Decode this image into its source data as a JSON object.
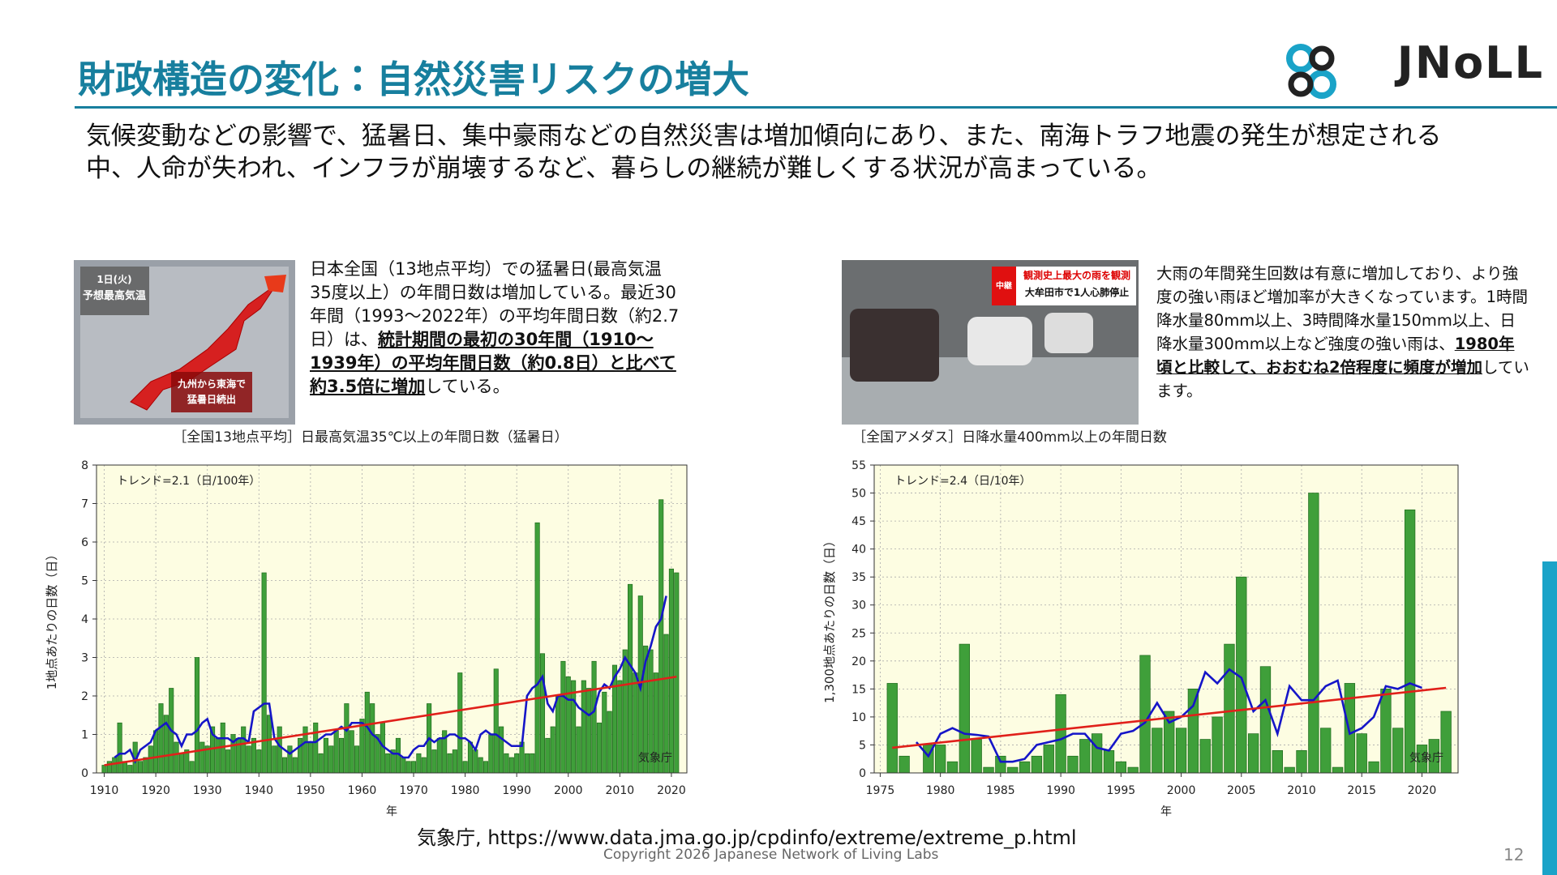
{
  "header": {
    "title": "財政構造の変化：自然災害リスクの増大",
    "logo": "JNoLL"
  },
  "intro": "気候変動などの影響で、猛暑日、集中豪雨などの自然災害は増加傾向にあり、また、南海トラフ地震の発生が想定される中、人命が失われ、インフラが崩壊するなど、暮らしの継続が難しくする状況が高まっている。",
  "left": {
    "image_texts": [
      "1日(火)",
      "予想最高気温",
      "九州から東海で",
      "猛暑日続出"
    ],
    "text": [
      "日本全国（13地点平均）での猛暑日(最高気温35度以上）の年間日数は増加している。最近30年間（1993～2022年）の平均年間日数（約2.7日）は、",
      "統計期間の最初の30年間（1910～1939年）の平均年間日数（約0.8日）と比べて約3.5倍に増加",
      "している。"
    ],
    "chart": {
      "type": "bar",
      "title": "［全国13地点平均］日最高気温35℃以上の年間日数（猛暑日）",
      "xlabel": "年",
      "ylabel": "1地点あたりの日数（日）",
      "annotations": [
        "トレンド=2.1（日/100年）",
        "気象庁"
      ],
      "x": [
        1910,
        1911,
        1912,
        1913,
        1914,
        1915,
        1916,
        1917,
        1918,
        1919,
        1920,
        1921,
        1922,
        1923,
        1924,
        1925,
        1926,
        1927,
        1928,
        1929,
        1930,
        1931,
        1932,
        1933,
        1934,
        1935,
        1936,
        1937,
        1938,
        1939,
        1940,
        1941,
        1942,
        1943,
        1944,
        1945,
        1946,
        1947,
        1948,
        1949,
        1950,
        1951,
        1952,
        1953,
        1954,
        1955,
        1956,
        1957,
        1958,
        1959,
        1960,
        1961,
        1962,
        1963,
        1964,
        1965,
        1966,
        1967,
        1968,
        1969,
        1970,
        1971,
        1972,
        1973,
        1974,
        1975,
        1976,
        1977,
        1978,
        1979,
        1980,
        1981,
        1982,
        1983,
        1984,
        1985,
        1986,
        1987,
        1988,
        1989,
        1990,
        1991,
        1992,
        1993,
        1994,
        1995,
        1996,
        1997,
        1998,
        1999,
        2000,
        2001,
        2002,
        2003,
        2004,
        2005,
        2006,
        2007,
        2008,
        2009,
        2010,
        2011,
        2012,
        2013,
        2014,
        2015,
        2016,
        2017,
        2018,
        2019,
        2020,
        2021
      ],
      "values": [
        0.2,
        0.3,
        0.4,
        1.3,
        0.3,
        0.2,
        0.8,
        0.3,
        0.4,
        0.7,
        1.1,
        1.8,
        1.5,
        2.2,
        0.8,
        0.5,
        0.6,
        0.3,
        3.0,
        0.8,
        0.7,
        1.2,
        0.9,
        1.3,
        0.6,
        1.0,
        0.9,
        1.2,
        0.7,
        0.9,
        0.6,
        5.2,
        1.5,
        0.7,
        1.2,
        0.4,
        0.7,
        0.4,
        0.9,
        1.2,
        0.8,
        1.3,
        0.5,
        0.9,
        0.7,
        1.1,
        0.9,
        1.8,
        1.1,
        0.7,
        1.4,
        2.1,
        1.8,
        1.0,
        1.3,
        0.5,
        0.6,
        0.9,
        0.4,
        0.3,
        0.3,
        0.5,
        0.4,
        1.8,
        0.6,
        0.9,
        1.1,
        0.5,
        0.6,
        2.6,
        0.3,
        0.8,
        0.6,
        0.4,
        0.3,
        1.0,
        2.7,
        1.2,
        0.5,
        0.4,
        0.5,
        0.8,
        0.5,
        0.5,
        6.5,
        3.1,
        0.9,
        1.2,
        2.0,
        2.9,
        2.5,
        2.4,
        1.2,
        2.4,
        2.2,
        2.9,
        1.3,
        2.1,
        1.6,
        2.8,
        2.4,
        3.2,
        4.9,
        2.6,
        4.6,
        3.3,
        3.2,
        2.6,
        7.1,
        3.6,
        5.3,
        5.2
      ],
      "color": "#3f9f3a",
      "running_mean": {
        "color": "#1515c8",
        "values": [
          null,
          null,
          0.4,
          0.5,
          0.5,
          0.6,
          0.3,
          0.6,
          0.7,
          0.8,
          1.1,
          1.2,
          1.3,
          1.1,
          1.0,
          0.7,
          1.0,
          1.0,
          1.1,
          1.3,
          1.4,
          1.0,
          0.9,
          0.9,
          0.9,
          0.8,
          0.9,
          0.9,
          0.8,
          1.6,
          1.7,
          1.8,
          1.8,
          0.9,
          0.7,
          0.6,
          0.5,
          0.6,
          0.7,
          0.8,
          0.8,
          0.8,
          0.9,
          1.0,
          1.0,
          1.1,
          1.2,
          1.1,
          1.3,
          1.3,
          1.3,
          1.2,
          1.0,
          0.9,
          0.7,
          0.6,
          0.5,
          0.5,
          0.4,
          0.4,
          0.6,
          0.7,
          0.7,
          0.9,
          0.8,
          0.9,
          0.9,
          1.0,
          1.0,
          0.9,
          0.9,
          0.8,
          0.6,
          1.0,
          1.1,
          1.0,
          1.0,
          0.9,
          0.8,
          0.7,
          0.7,
          0.7,
          2.0,
          2.2,
          2.3,
          2.5,
          1.8,
          1.6,
          2.0,
          2.0,
          1.9,
          1.9,
          1.7,
          1.6,
          1.5,
          1.6,
          2.1,
          2.3,
          2.2,
          2.5,
          2.7,
          3.0,
          2.8,
          2.6,
          2.2,
          2.9,
          3.3,
          3.8,
          4.0,
          4.6,
          null,
          null
        ]
      },
      "trend": {
        "color": "#e0201a",
        "x": [
          1910,
          2021
        ],
        "values": [
          0.2,
          2.5
        ]
      },
      "xlim": [
        1908.5,
        2023
      ],
      "ylim": [
        0,
        8
      ],
      "xticks": [
        1910,
        1920,
        1930,
        1940,
        1950,
        1960,
        1970,
        1980,
        1990,
        2000,
        2010,
        2020
      ],
      "yticks": [
        0,
        1,
        2,
        3,
        4,
        5,
        6,
        7,
        8
      ],
      "grid": true
    }
  },
  "right": {
    "image_texts": [
      "観測史上最大の雨を観測",
      "大牟田市で1人心肺停止",
      "中継"
    ],
    "text": [
      "大雨の年間発生回数は有意に増加しており、より強度の強い雨ほど増加率が大きくなっています。1時間降水量80mm以上、3時間降水量150mm以上、日降水量300mm以上など強度の強い雨は、",
      "1980年頃と比較して、おおむね2倍程度に頻度が増加",
      "しています。"
    ],
    "chart": {
      "type": "bar",
      "title": "［全国アメダス］日降水量400mm以上の年間日数",
      "xlabel": "年",
      "ylabel": "1,300地点あたりの日数（日）",
      "annotations": [
        "トレンド=2.4（日/10年）",
        "気象庁"
      ],
      "x": [
        1976,
        1977,
        1978,
        1979,
        1980,
        1981,
        1982,
        1983,
        1984,
        1985,
        1986,
        1987,
        1988,
        1989,
        1990,
        1991,
        1992,
        1993,
        1994,
        1995,
        1996,
        1997,
        1998,
        1999,
        2000,
        2001,
        2002,
        2003,
        2004,
        2005,
        2006,
        2007,
        2008,
        2009,
        2010,
        2011,
        2012,
        2013,
        2014,
        2015,
        2016,
        2017,
        2018,
        2019,
        2020,
        2021,
        2022
      ],
      "values": [
        16,
        3,
        0,
        5,
        5,
        2,
        23,
        6,
        1,
        3,
        1,
        2,
        3,
        5,
        14,
        3,
        6,
        7,
        4,
        2,
        1,
        21,
        8,
        11,
        8,
        15,
        6,
        10,
        23,
        35,
        7,
        19,
        4,
        1,
        4,
        50,
        8,
        1,
        16,
        7,
        2,
        15,
        8,
        47,
        5,
        6,
        11
      ],
      "color": "#3f9f3a",
      "running_mean": {
        "color": "#1515c8",
        "values": [
          null,
          null,
          5.5,
          3,
          7,
          8,
          7,
          6.8,
          6.5,
          2,
          2,
          2.5,
          5,
          5.5,
          6,
          7,
          7,
          4.5,
          4,
          7,
          7.5,
          9,
          12.5,
          9,
          10,
          12,
          18,
          16,
          18.5,
          17,
          11,
          13,
          7,
          15.5,
          13,
          13,
          15.5,
          16.5,
          7,
          8,
          10,
          15.5,
          15,
          16,
          15.2,
          null,
          null
        ]
      },
      "trend": {
        "color": "#e0201a",
        "x": [
          1976,
          2022
        ],
        "values": [
          4.5,
          15.2
        ]
      },
      "xlim": [
        1974.5,
        2023
      ],
      "ylim": [
        0,
        55
      ],
      "xticks": [
        1975,
        1980,
        1985,
        1990,
        1995,
        2000,
        2005,
        2010,
        2015,
        2020
      ],
      "yticks": [
        0,
        5,
        10,
        15,
        20,
        25,
        30,
        35,
        40,
        45,
        50,
        55
      ],
      "grid": true
    }
  },
  "source": "気象庁, https://www.data.jma.go.jp/cpdinfo/extreme/extreme_p.html",
  "copyright": "Copyright 2026  Japanese Network of Living Labs",
  "page_number": "12"
}
